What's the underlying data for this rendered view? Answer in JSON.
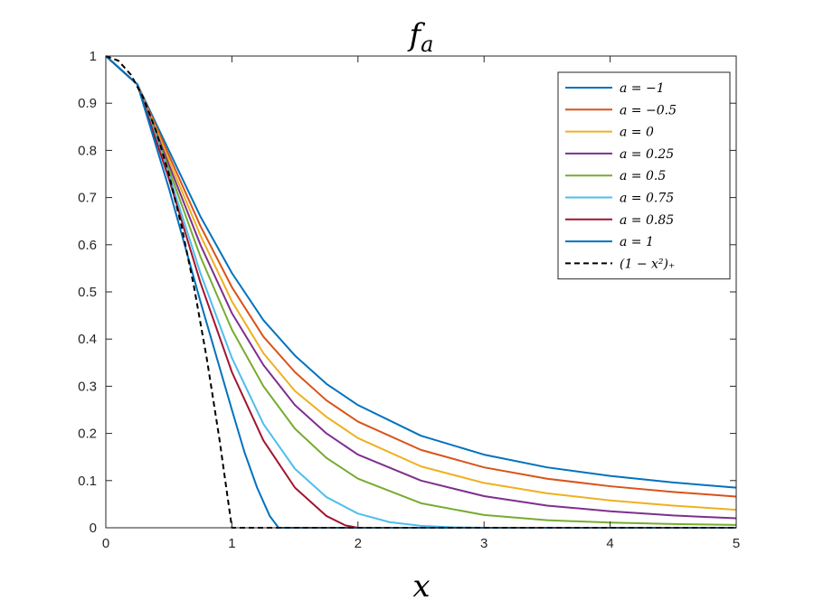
{
  "chart_data": {
    "type": "line",
    "title": "f_a",
    "title_main": "f",
    "title_sub": "a",
    "xlabel": "x",
    "ylabel": "",
    "xlim": [
      0,
      5
    ],
    "ylim": [
      0,
      1
    ],
    "xticks": [
      "0",
      "1",
      "2",
      "3",
      "4",
      "5"
    ],
    "yticks": [
      "0",
      "0.1",
      "0.2",
      "0.3",
      "0.4",
      "0.5",
      "0.6",
      "0.7",
      "0.8",
      "0.9",
      "1"
    ],
    "grid": false,
    "legend_position": "top-right",
    "series": [
      {
        "name": "a = −1",
        "color": "#0072BD",
        "dash": "solid",
        "x": [
          0,
          0.25,
          0.5,
          0.75,
          1,
          1.25,
          1.5,
          1.75,
          2,
          2.5,
          3,
          3.5,
          4,
          4.5,
          5
        ],
        "y": [
          1,
          0.94,
          0.8,
          0.66,
          0.54,
          0.44,
          0.365,
          0.305,
          0.26,
          0.195,
          0.155,
          0.128,
          0.11,
          0.096,
          0.085
        ]
      },
      {
        "name": "a = −0.5",
        "color": "#D95319",
        "dash": "solid",
        "x": [
          0,
          0.25,
          0.5,
          0.75,
          1,
          1.25,
          1.5,
          1.75,
          2,
          2.5,
          3,
          3.5,
          4,
          4.5,
          5
        ],
        "y": [
          1,
          0.94,
          0.79,
          0.64,
          0.51,
          0.405,
          0.33,
          0.27,
          0.225,
          0.165,
          0.128,
          0.104,
          0.088,
          0.076,
          0.066
        ]
      },
      {
        "name": "a = 0",
        "color": "#EDB120",
        "dash": "solid",
        "x": [
          0,
          0.25,
          0.5,
          0.75,
          1,
          1.25,
          1.5,
          1.75,
          2,
          2.5,
          3,
          3.5,
          4,
          4.5,
          5
        ],
        "y": [
          1,
          0.94,
          0.78,
          0.62,
          0.48,
          0.37,
          0.29,
          0.235,
          0.19,
          0.13,
          0.095,
          0.073,
          0.058,
          0.047,
          0.038
        ]
      },
      {
        "name": "a = 0.25",
        "color": "#7E2F8E",
        "dash": "solid",
        "x": [
          0,
          0.25,
          0.5,
          0.75,
          1,
          1.25,
          1.5,
          1.75,
          2,
          2.5,
          3,
          3.5,
          4,
          4.5,
          5
        ],
        "y": [
          1,
          0.94,
          0.77,
          0.6,
          0.455,
          0.345,
          0.26,
          0.2,
          0.155,
          0.1,
          0.067,
          0.047,
          0.035,
          0.026,
          0.02
        ]
      },
      {
        "name": "a = 0.5",
        "color": "#77AC30",
        "dash": "solid",
        "x": [
          0,
          0.25,
          0.5,
          0.75,
          1,
          1.25,
          1.5,
          1.75,
          2,
          2.5,
          3,
          3.5,
          4,
          4.5,
          5
        ],
        "y": [
          1,
          0.94,
          0.76,
          0.575,
          0.42,
          0.3,
          0.21,
          0.148,
          0.104,
          0.052,
          0.027,
          0.016,
          0.011,
          0.008,
          0.006
        ]
      },
      {
        "name": "a = 0.75",
        "color": "#4DBEEE",
        "dash": "solid",
        "x": [
          0,
          0.25,
          0.5,
          0.75,
          1,
          1.25,
          1.5,
          1.75,
          2,
          2.25,
          2.5,
          2.75,
          3,
          3.5,
          4,
          5
        ],
        "y": [
          1,
          0.94,
          0.75,
          0.54,
          0.36,
          0.22,
          0.125,
          0.065,
          0.03,
          0.012,
          0.004,
          0.001,
          0,
          0,
          0,
          0
        ]
      },
      {
        "name": "a = 0.85",
        "color": "#A2142F",
        "dash": "solid",
        "x": [
          0,
          0.25,
          0.5,
          0.75,
          1,
          1.25,
          1.5,
          1.75,
          1.9,
          2,
          3,
          4,
          5
        ],
        "y": [
          1,
          0.94,
          0.74,
          0.52,
          0.33,
          0.185,
          0.085,
          0.025,
          0.005,
          0,
          0,
          0,
          0
        ]
      },
      {
        "name": "a = 1",
        "color": "#0072BD",
        "dash": "solid",
        "x": [
          0,
          0.25,
          0.5,
          0.75,
          1,
          1.1,
          1.2,
          1.3,
          1.37,
          1.5,
          2,
          3,
          4,
          5
        ],
        "y": [
          1,
          0.94,
          0.72,
          0.48,
          0.25,
          0.16,
          0.085,
          0.025,
          0,
          0,
          0,
          0,
          0,
          0
        ]
      },
      {
        "name": "(1 − x²)₊",
        "color": "#000000",
        "dash": "dashed",
        "x": [
          0,
          0.1,
          0.2,
          0.3,
          0.4,
          0.5,
          0.6,
          0.7,
          0.8,
          0.9,
          1,
          2,
          3,
          4,
          5
        ],
        "y": [
          1,
          0.99,
          0.96,
          0.91,
          0.84,
          0.75,
          0.64,
          0.51,
          0.36,
          0.19,
          0,
          0,
          0,
          0,
          0
        ]
      }
    ]
  }
}
